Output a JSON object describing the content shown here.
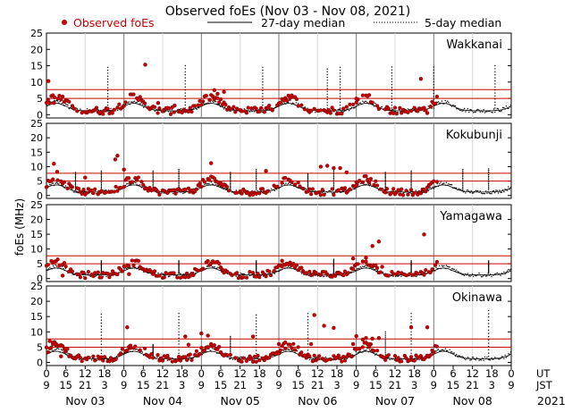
{
  "chart_data": {
    "type": "scatter",
    "title": "Observed foEs (Nov 03 - Nov 08, 2021)",
    "ylabel": "foEs (MHz)",
    "legend": {
      "observed": "Observed foEs",
      "median27": "27-day median",
      "median5": "5-day median"
    },
    "xlim": [
      0,
      144
    ],
    "ylim": [
      -1,
      25
    ],
    "y_ticks": [
      0,
      5,
      10,
      15,
      20,
      25
    ],
    "reference_lines_mhz": [
      5,
      7.7
    ],
    "ut_hours": [
      "0",
      "6",
      "12",
      "18",
      "0",
      "6",
      "12",
      "18",
      "0",
      "6",
      "12",
      "18",
      "0",
      "6",
      "12",
      "18",
      "0",
      "6",
      "12",
      "18",
      "0",
      "6",
      "12",
      "18",
      "0"
    ],
    "jst_hours": [
      "9",
      "15",
      "21",
      "3",
      "9",
      "15",
      "21",
      "3",
      "9",
      "15",
      "21",
      "3",
      "9",
      "15",
      "21",
      "3",
      "9",
      "15",
      "21",
      "3",
      "9",
      "15",
      "21",
      "3",
      "9"
    ],
    "tz_labels": {
      "ut": "UT",
      "jst": "JST"
    },
    "day_labels": [
      "Nov 03",
      "Nov 04",
      "Nov 05",
      "Nov 06",
      "Nov 07",
      "Nov 08"
    ],
    "year_label": "2021",
    "observed_end_hour": 121,
    "stations": [
      {
        "name": "Wakkanai",
        "peak": 4.2,
        "spikes": [
          [
            0.6,
            10.3
          ],
          [
            2.3,
            3.6
          ],
          [
            20.4,
            0.5
          ],
          [
            30.6,
            15.3
          ],
          [
            34.6,
            3.6
          ],
          [
            39.7,
            2.8
          ],
          [
            52,
            7.5
          ],
          [
            53,
            6.4
          ],
          [
            55,
            7
          ],
          [
            96,
            4.9
          ],
          [
            103,
            1.8
          ],
          [
            116,
            11
          ],
          [
            118,
            0.5
          ]
        ],
        "median_spikes": [
          [
            19,
            14.5
          ],
          [
            43,
            15
          ],
          [
            67,
            14.5
          ],
          [
            87,
            14
          ],
          [
            91,
            14.5
          ],
          [
            107,
            14.6
          ],
          [
            120,
            14.6
          ],
          [
            139,
            15
          ]
        ]
      },
      {
        "name": "Kokubunji",
        "peak": 4.5,
        "spikes": [
          [
            2.3,
            11
          ],
          [
            3.3,
            8.2
          ],
          [
            12,
            6.2
          ],
          [
            21.3,
            12.5
          ],
          [
            22,
            13.8
          ],
          [
            24,
            9
          ],
          [
            25,
            6
          ],
          [
            51,
            11.2
          ],
          [
            68,
            8.5
          ],
          [
            85,
            10
          ],
          [
            87,
            10.3
          ],
          [
            89,
            9.5
          ],
          [
            91,
            9.5
          ],
          [
            93,
            8
          ],
          [
            96,
            3.5
          ]
        ],
        "median_spikes": [
          [
            9,
            8
          ],
          [
            17,
            8.5
          ],
          [
            33,
            8.5
          ],
          [
            41,
            9
          ],
          [
            57,
            8
          ],
          [
            65,
            9
          ],
          [
            81,
            7.5
          ],
          [
            89,
            9
          ],
          [
            105,
            8
          ],
          [
            113,
            8.5
          ],
          [
            129,
            9
          ],
          [
            137,
            9.2
          ]
        ]
      },
      {
        "name": "Yamagawa",
        "peak": 4.3,
        "spikes": [
          [
            5,
            1
          ],
          [
            25.6,
            1.5
          ],
          [
            73,
            6
          ],
          [
            95,
            6.8
          ],
          [
            99,
            7
          ],
          [
            101,
            11
          ],
          [
            103,
            12.5
          ],
          [
            104,
            4
          ],
          [
            117,
            14.9
          ]
        ],
        "median_spikes": [
          [
            17,
            6
          ],
          [
            41,
            6
          ],
          [
            65,
            6
          ],
          [
            89,
            6.5
          ],
          [
            113,
            6
          ],
          [
            137,
            6
          ]
        ]
      },
      {
        "name": "Okinawa",
        "peak": 4.5,
        "spikes": [
          [
            1,
            7
          ],
          [
            2,
            6.5
          ],
          [
            3,
            6
          ],
          [
            4.5,
            2
          ],
          [
            25,
            11.5
          ],
          [
            26,
            5.5
          ],
          [
            43,
            8.5
          ],
          [
            44,
            5.8
          ],
          [
            48,
            9.5
          ],
          [
            50,
            8.8
          ],
          [
            51,
            6
          ],
          [
            64,
            8.5
          ],
          [
            72,
            6
          ],
          [
            74,
            6.5
          ],
          [
            80,
            2.3
          ],
          [
            82,
            6
          ],
          [
            83,
            15.5
          ],
          [
            86,
            12
          ],
          [
            89,
            11.3
          ],
          [
            95,
            6
          ],
          [
            96,
            8.6
          ],
          [
            98,
            7.5
          ],
          [
            99,
            8
          ],
          [
            100,
            6
          ],
          [
            101,
            7.8
          ],
          [
            103,
            8
          ],
          [
            113,
            11.5
          ],
          [
            118,
            11.5
          ]
        ],
        "median_spikes": [
          [
            17,
            15.8
          ],
          [
            33,
            5.8
          ],
          [
            41,
            16
          ],
          [
            57,
            8.5
          ],
          [
            65,
            15.5
          ],
          [
            81,
            16
          ],
          [
            105,
            10
          ],
          [
            113,
            16
          ],
          [
            137,
            17
          ]
        ]
      }
    ]
  }
}
